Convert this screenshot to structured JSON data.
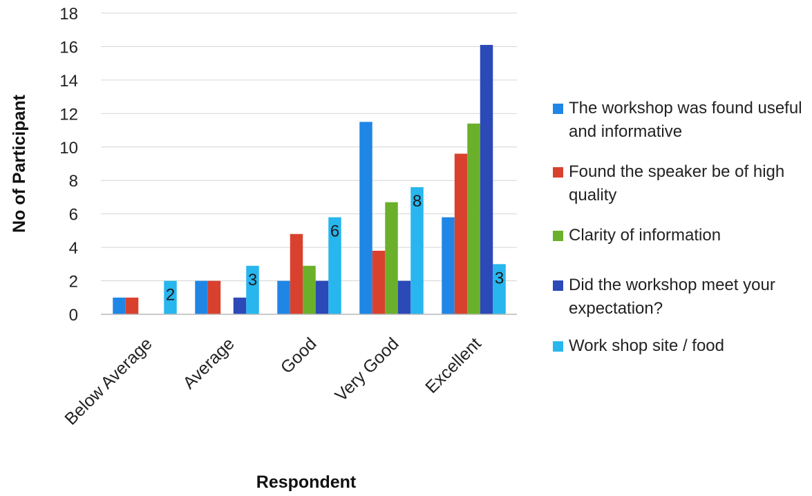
{
  "chart_data": {
    "type": "bar",
    "title": "",
    "xlabel": "Respondent",
    "ylabel": "No of Participant",
    "ylim": [
      0,
      18
    ],
    "yticks": [
      0,
      2,
      4,
      6,
      8,
      10,
      12,
      14,
      16,
      18
    ],
    "grid": true,
    "legend_position": "right",
    "categories": [
      "Below Average",
      "Average",
      "Good",
      "Very Good",
      "Excellent"
    ],
    "series": [
      {
        "name": "The workshop was found useful and informative",
        "color": "#1f86e6",
        "values": [
          1,
          2,
          2,
          11.5,
          5.8
        ]
      },
      {
        "name": "Found the speaker be of high quality",
        "color": "#d9412f",
        "values": [
          1,
          2,
          4.8,
          3.8,
          9.6
        ]
      },
      {
        "name": "Clarity of information",
        "color": "#6ab02a",
        "values": [
          0,
          0,
          2.9,
          6.7,
          11.4
        ]
      },
      {
        "name": "Did the workshop meet your expectation?",
        "color": "#2c49b8",
        "values": [
          0,
          1,
          2,
          2,
          16.1
        ]
      },
      {
        "name": "Work shop site / food",
        "color": "#28b6ee",
        "values": [
          2,
          2.9,
          5.8,
          7.6,
          3
        ]
      }
    ],
    "annotations": [
      {
        "series": 4,
        "category": 0,
        "text": "2"
      },
      {
        "series": 4,
        "category": 1,
        "text": "3"
      },
      {
        "series": 4,
        "category": 2,
        "text": "6"
      },
      {
        "series": 4,
        "category": 3,
        "text": "8"
      },
      {
        "series": 4,
        "category": 4,
        "text": "3"
      }
    ]
  }
}
